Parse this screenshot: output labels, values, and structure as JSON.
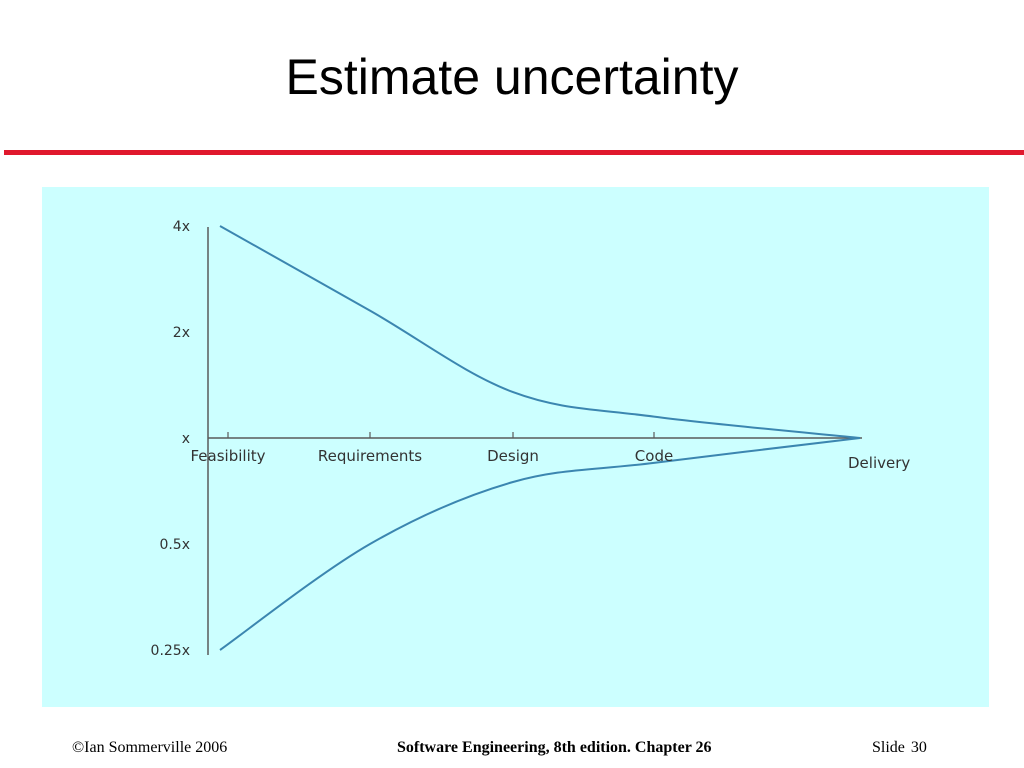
{
  "slide": {
    "title": "Estimate uncertainty"
  },
  "colors": {
    "title_rule": "#e0182d",
    "panel_background": "#ccffff",
    "curve": "#3b86b0",
    "axis": "#5a5a5a"
  },
  "chart_data": {
    "type": "line",
    "title": "",
    "xlabel": "",
    "ylabel": "",
    "y_scale": "log",
    "yticks": [
      {
        "value": 4,
        "label": "4x"
      },
      {
        "value": 2,
        "label": "2x"
      },
      {
        "value": 1,
        "label": "x"
      },
      {
        "value": 0.5,
        "label": "0.5x"
      },
      {
        "value": 0.25,
        "label": "0.25x"
      }
    ],
    "categories": [
      "Feasibility",
      "Requirements",
      "Design",
      "Code",
      "Delivery"
    ],
    "series": [
      {
        "role": "upper-bound",
        "values": [
          4,
          2.3,
          1.35,
          1.15,
          1
        ]
      },
      {
        "role": "lower-bound",
        "values": [
          0.25,
          0.5,
          0.75,
          0.85,
          1
        ]
      }
    ]
  },
  "footer": {
    "copyright": "©Ian Sommerville 2006",
    "book": "Software Engineering, 8th edition. Chapter 26",
    "slide_label": "Slide",
    "slide_number": "30"
  }
}
